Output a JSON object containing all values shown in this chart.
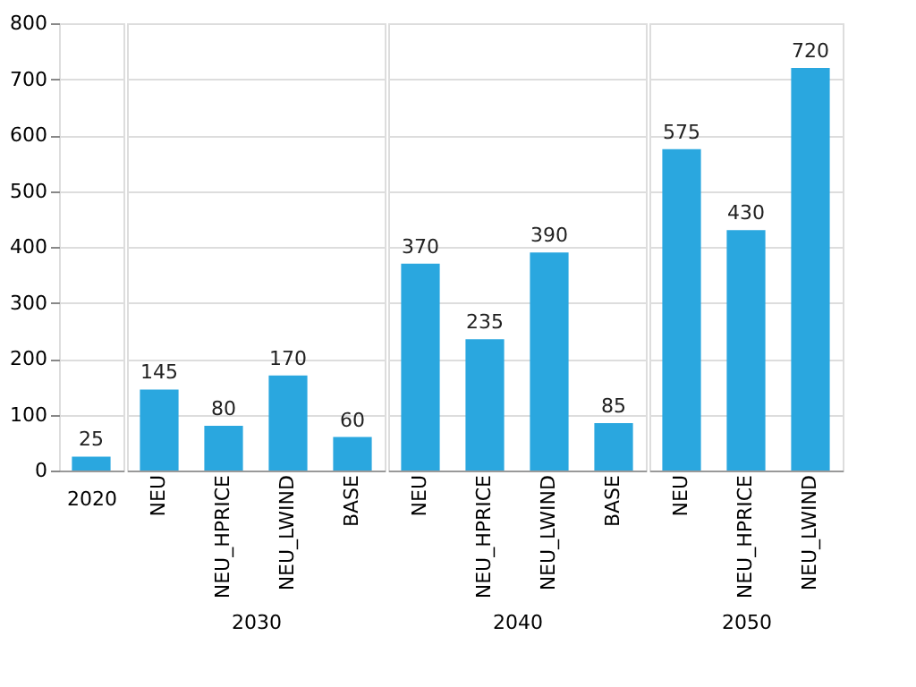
{
  "chart_data": [
    {
      "type": "bar",
      "categories": [
        null
      ],
      "values": [
        25
      ],
      "color": "#2aa7df",
      "xlabel": "2020",
      "ylim": [
        0,
        800
      ],
      "yticks": [
        0,
        100,
        200,
        300,
        400,
        500,
        600,
        700,
        800
      ],
      "grid": "y",
      "data_labels": true
    },
    {
      "type": "bar",
      "categories": [
        "NEU",
        "NEU_HPRICE",
        "NEU_LWIND",
        "BASE"
      ],
      "values": [
        145,
        80,
        170,
        60
      ],
      "color": "#2aa7df",
      "xlabel": "2030",
      "ylim": [
        0,
        800
      ],
      "yticks": [
        0,
        100,
        200,
        300,
        400,
        500,
        600,
        700,
        800
      ],
      "grid": "y",
      "data_labels": true,
      "tick_labels": "x"
    },
    {
      "type": "bar",
      "categories": [
        "NEU",
        "NEU_HPRICE",
        "NEU_LWIND",
        "BASE"
      ],
      "values": [
        370,
        235,
        390,
        85
      ],
      "color": "#2aa7df",
      "xlabel": "2040",
      "ylim": [
        0,
        800
      ],
      "yticks": [
        0,
        100,
        200,
        300,
        400,
        500,
        600,
        700,
        800
      ],
      "grid": "y",
      "data_labels": true,
      "tick_labels": "x"
    },
    {
      "type": "bar",
      "categories": [
        "NEU",
        "NEU_HPRICE",
        "NEU_LWIND"
      ],
      "values": [
        575,
        430,
        720
      ],
      "color": "#2aa7df",
      "xlabel": "2050",
      "ylim": [
        0,
        800
      ],
      "yticks": [
        0,
        100,
        200,
        300,
        400,
        500,
        600,
        700,
        800
      ],
      "grid": "y",
      "data_labels": true,
      "tick_labels": "x"
    }
  ]
}
